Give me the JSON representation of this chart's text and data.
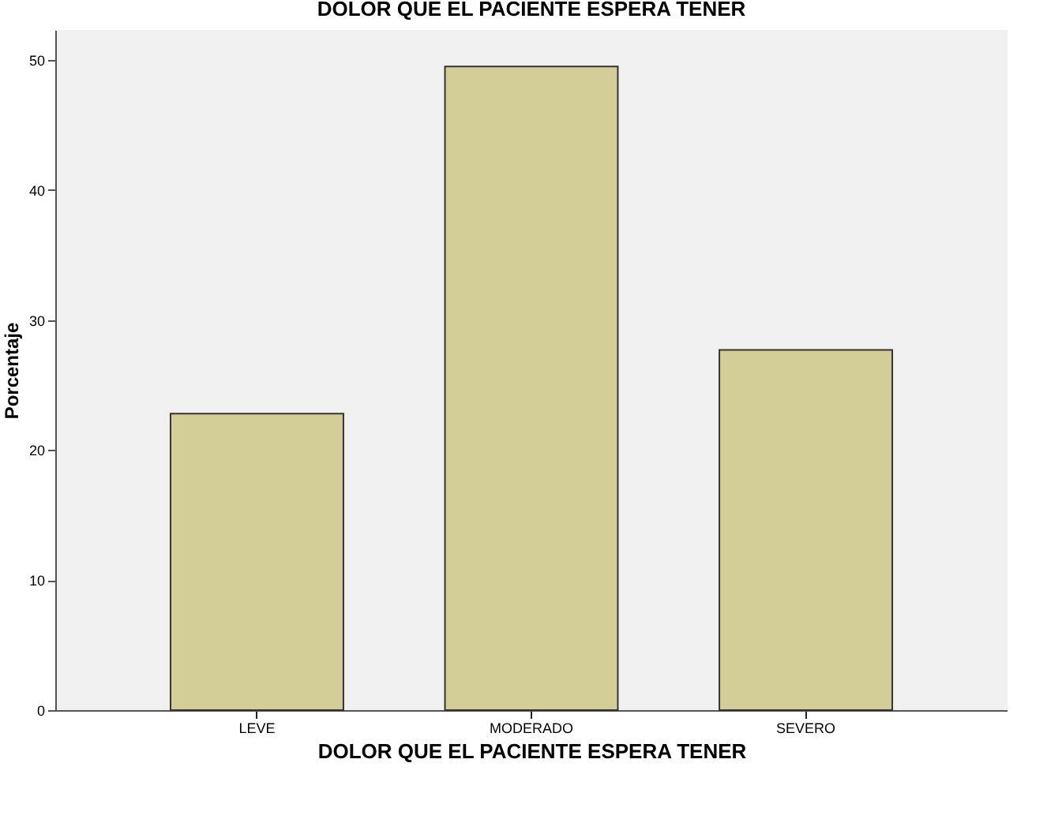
{
  "chart_data": {
    "type": "bar",
    "title": "DOLOR QUE EL PACIENTE ESPERA TENER",
    "xlabel": "DOLOR QUE EL PACIENTE ESPERA TENER",
    "ylabel": "Porcentaje",
    "categories": [
      "LEVE",
      "MODERADO",
      "SEVERO"
    ],
    "values": [
      22.8,
      49.5,
      27.7
    ],
    "color": "#d3ce98",
    "ylim": [
      0,
      52.3
    ],
    "yticks": [
      0,
      10,
      20,
      30,
      40,
      50
    ],
    "grid": false
  }
}
